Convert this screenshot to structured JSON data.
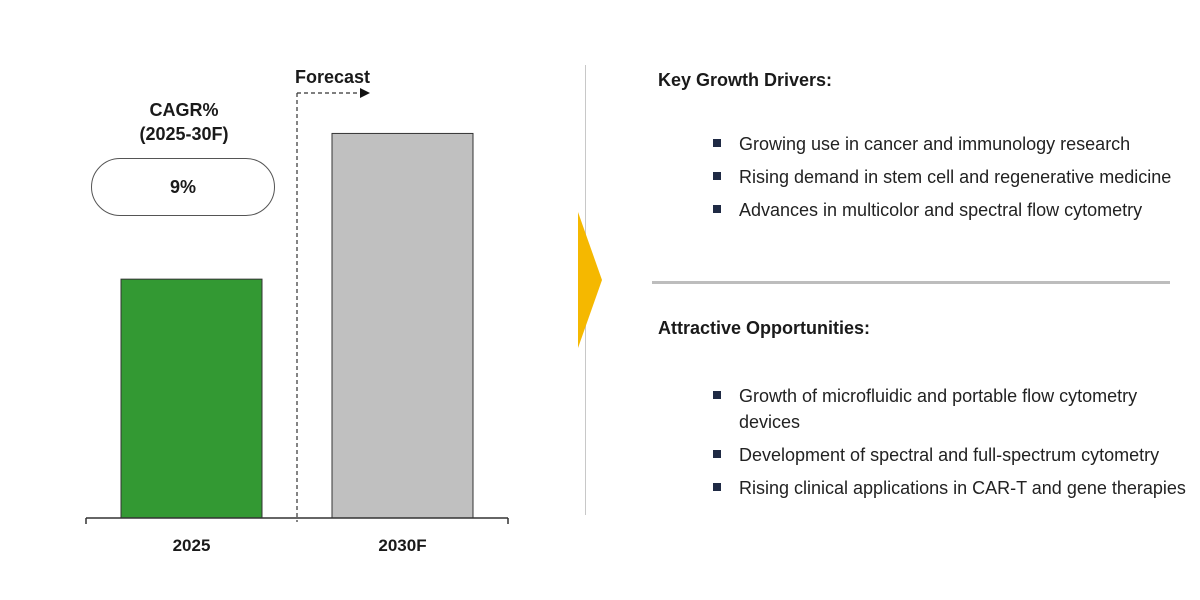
{
  "chart_data": {
    "type": "bar",
    "categories": [
      "2025",
      "2030F"
    ],
    "values": [
      100,
      161
    ],
    "colors": [
      "#339933",
      "#c0c0c0"
    ],
    "ylim": [
      0,
      175
    ],
    "forecast_label": "Forecast",
    "cagr": {
      "title_line1": "CAGR%",
      "title_line2": "(2025-30F)",
      "value": "9%"
    }
  },
  "arrow_color": "#f5b800",
  "drivers": {
    "title": "Key Growth Drivers:",
    "items": [
      "Growing use in cancer and immunology research",
      "Rising demand in stem cell and regenerative medicine",
      "Advances in multicolor and spectral flow cytometry"
    ]
  },
  "opportunities": {
    "title": "Attractive Opportunities:",
    "items": [
      "Growth of microfluidic and portable flow cytometry devices",
      "Development of spectral and full-spectrum cytometry",
      "Rising clinical applications in CAR-T and gene therapies"
    ]
  }
}
